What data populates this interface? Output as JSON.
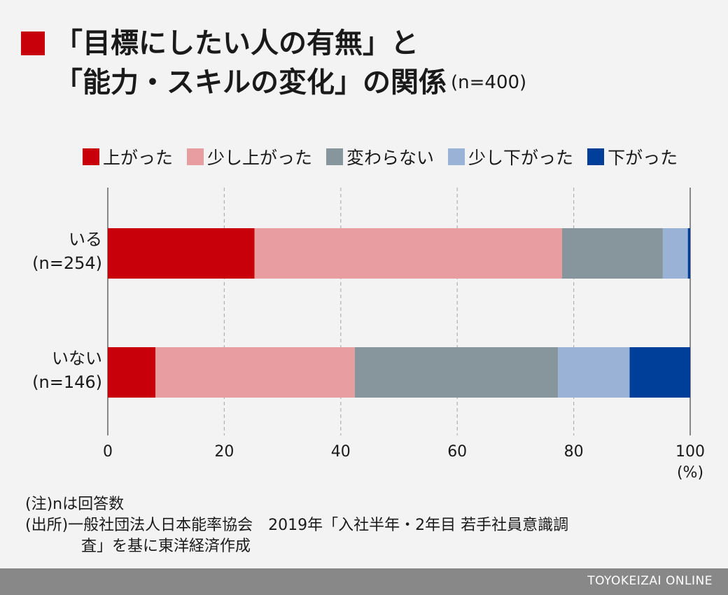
{
  "title": {
    "line1": "「目標にしたい人の有無」と",
    "line2": "「能力・スキルの変化」の関係",
    "n_label": "(n=400)"
  },
  "notes": {
    "note1": "(注)nは回答数",
    "source_line1": "(出所)一般社団法人日本能率協会　2019年「入社半年・2年目 若手社員意識調",
    "source_line2": "査」を基に東洋経済作成"
  },
  "footer": {
    "brand": "TOYOKEIZAI ONLINE"
  },
  "chart_data": {
    "type": "bar",
    "orientation": "horizontal",
    "stacked": true,
    "categories": [
      "いる\n(n=254)",
      "いない\n(n=146)"
    ],
    "series": [
      {
        "name": "上がった",
        "color": "#c8000a",
        "values": [
          25.2,
          8.2
        ]
      },
      {
        "name": "少し上がった",
        "color": "#e89da1",
        "values": [
          52.8,
          34.2
        ]
      },
      {
        "name": "変わらない",
        "color": "#87969d",
        "values": [
          17.3,
          34.9
        ]
      },
      {
        "name": "少し下がった",
        "color": "#99b2d6",
        "values": [
          4.3,
          12.3
        ]
      },
      {
        "name": "下がった",
        "color": "#003f99",
        "values": [
          0.4,
          10.4
        ]
      }
    ],
    "xlim": [
      0,
      100
    ],
    "xticks": [
      0,
      20,
      40,
      60,
      80,
      100
    ],
    "xunit": "(%)",
    "legend_position": "top",
    "grid": true
  }
}
